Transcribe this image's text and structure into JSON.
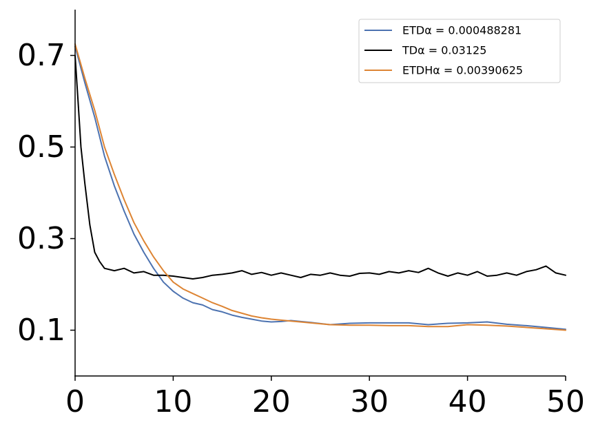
{
  "chart_data": {
    "type": "line",
    "title": "",
    "xlabel": "",
    "ylabel": "",
    "xlim": [
      0,
      50
    ],
    "ylim": [
      0.0,
      0.8
    ],
    "x_ticks": [
      0,
      10,
      20,
      30,
      40,
      50
    ],
    "x_tick_labels": [
      "0",
      "10",
      "20",
      "30",
      "40",
      "50"
    ],
    "y_ticks": [
      0.1,
      0.3,
      0.5,
      0.7
    ],
    "y_tick_labels": [
      "0.1",
      "0.3",
      "0.5",
      "0.7"
    ],
    "grid": false,
    "legend_position": "top-right",
    "series": [
      {
        "name": "ETDα =  0.000488281",
        "color": "#4c72b0",
        "x": [
          0,
          1,
          2,
          3,
          4,
          5,
          6,
          7,
          8,
          9,
          10,
          11,
          12,
          13,
          14,
          15,
          16,
          17,
          18,
          19,
          20,
          21,
          22,
          24,
          26,
          28,
          30,
          32,
          34,
          36,
          38,
          40,
          42,
          44,
          46,
          48,
          50
        ],
        "y": [
          0.72,
          0.64,
          0.565,
          0.48,
          0.415,
          0.36,
          0.31,
          0.27,
          0.235,
          0.205,
          0.185,
          0.17,
          0.16,
          0.155,
          0.145,
          0.14,
          0.133,
          0.128,
          0.124,
          0.12,
          0.118,
          0.119,
          0.121,
          0.117,
          0.112,
          0.115,
          0.116,
          0.116,
          0.116,
          0.112,
          0.115,
          0.116,
          0.118,
          0.113,
          0.11,
          0.106,
          0.102
        ]
      },
      {
        "name": "TDα =  0.03125",
        "color": "#000000",
        "x": [
          0,
          0.3,
          0.6,
          1,
          1.5,
          2,
          2.5,
          3,
          4,
          5,
          6,
          7,
          8,
          9,
          10,
          11,
          12,
          13,
          14,
          15,
          16,
          17,
          18,
          19,
          20,
          21,
          22,
          23,
          24,
          25,
          26,
          27,
          28,
          29,
          30,
          31,
          32,
          33,
          34,
          35,
          36,
          37,
          38,
          39,
          40,
          41,
          42,
          43,
          44,
          45,
          46,
          47,
          48,
          49,
          50
        ],
        "y": [
          0.7,
          0.6,
          0.5,
          0.42,
          0.33,
          0.27,
          0.25,
          0.235,
          0.23,
          0.235,
          0.225,
          0.228,
          0.22,
          0.22,
          0.218,
          0.215,
          0.212,
          0.215,
          0.22,
          0.222,
          0.225,
          0.23,
          0.222,
          0.226,
          0.22,
          0.225,
          0.22,
          0.215,
          0.222,
          0.22,
          0.225,
          0.22,
          0.218,
          0.224,
          0.225,
          0.222,
          0.228,
          0.225,
          0.23,
          0.226,
          0.235,
          0.225,
          0.218,
          0.225,
          0.22,
          0.228,
          0.218,
          0.22,
          0.225,
          0.22,
          0.228,
          0.232,
          0.24,
          0.225,
          0.22
        ]
      },
      {
        "name": "ETDHα =  0.00390625",
        "color": "#dd8433",
        "x": [
          0,
          1,
          2,
          3,
          4,
          5,
          6,
          7,
          8,
          9,
          10,
          11,
          12,
          13,
          14,
          15,
          16,
          17,
          18,
          19,
          20,
          21,
          22,
          24,
          26,
          28,
          30,
          32,
          34,
          36,
          38,
          40,
          42,
          44,
          46,
          48,
          50
        ],
        "y": [
          0.725,
          0.65,
          0.58,
          0.5,
          0.44,
          0.385,
          0.335,
          0.295,
          0.26,
          0.23,
          0.205,
          0.19,
          0.18,
          0.17,
          0.16,
          0.152,
          0.143,
          0.137,
          0.131,
          0.127,
          0.124,
          0.122,
          0.12,
          0.116,
          0.112,
          0.111,
          0.111,
          0.11,
          0.11,
          0.108,
          0.108,
          0.112,
          0.111,
          0.109,
          0.106,
          0.103,
          0.1
        ]
      }
    ]
  }
}
